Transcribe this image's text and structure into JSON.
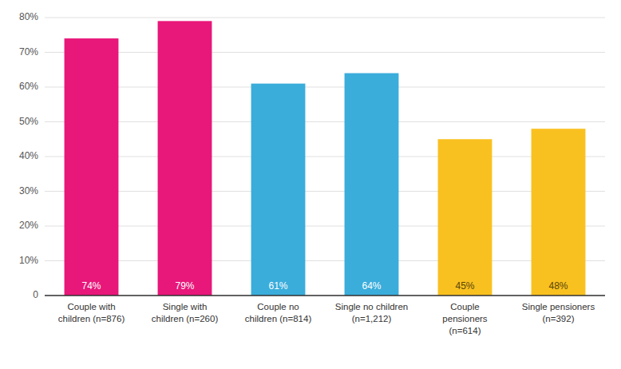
{
  "chart_data": {
    "type": "bar",
    "categories": [
      "Couple with\nchildren (n=876)",
      "Single with\nchildren (n=260)",
      "Couple no\nchildren (n=814)",
      "Single no children\n(n=1,212)",
      "Couple\npensioners\n(n=614)",
      "Single pensioners\n(n=392)"
    ],
    "values": [
      74,
      79,
      61,
      64,
      45,
      48
    ],
    "value_labels": [
      "74%",
      "79%",
      "61%",
      "64%",
      "45%",
      "48%"
    ],
    "data_labels": true,
    "colors": [
      "#E8177A",
      "#E8177A",
      "#3AADDB",
      "#3AADDB",
      "#F9C120",
      "#F9C120"
    ],
    "ylim": [
      0,
      80
    ],
    "yticks": [
      0,
      {
        "value": 10,
        "label": "10%"
      },
      {
        "value": 20,
        "label": "20%"
      },
      {
        "value": 30,
        "label": "30%"
      },
      {
        "value": 40,
        "label": "40%"
      },
      {
        "value": 50,
        "label": "50%"
      },
      {
        "value": 60,
        "label": "60%"
      },
      {
        "value": 70,
        "label": "70%"
      },
      {
        "value": 80,
        "label": "80%"
      }
    ],
    "grid": true
  }
}
